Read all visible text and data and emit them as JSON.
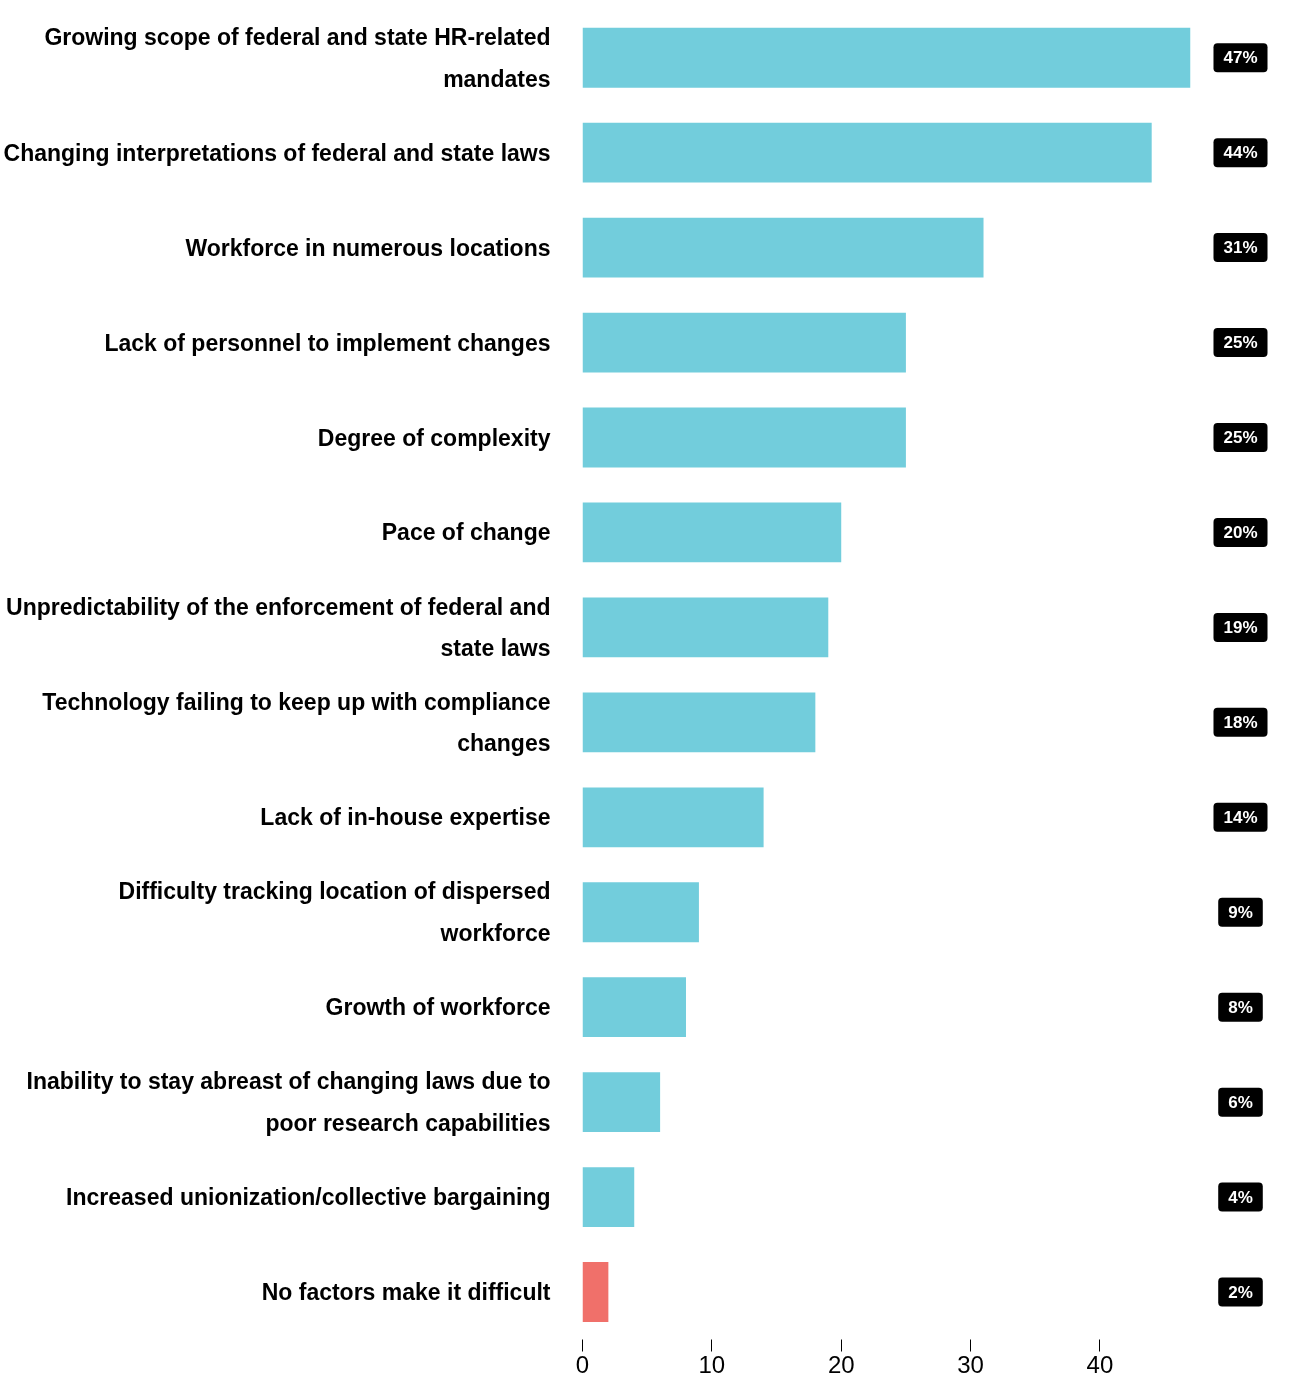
{
  "chart_data": {
    "type": "bar",
    "orientation": "horizontal",
    "categories": [
      "Growing scope of federal and state HR-related mandates",
      "Changing interpretations of federal and state laws",
      "Workforce in numerous locations",
      "Lack of personnel to implement changes",
      "Degree of complexity",
      "Pace of change",
      "Unpredictability of the enforcement of federal and state laws",
      "Technology failing to keep up with compliance changes",
      "Lack of in-house expertise",
      "Difficulty tracking location of dispersed workforce",
      "Growth of workforce",
      "Inability to stay abreast of changing laws due to poor research capabilities",
      "Increased unionization/collective bargaining",
      "No factors make it difficult"
    ],
    "values": [
      47,
      44,
      31,
      25,
      25,
      20,
      19,
      18,
      14,
      9,
      8,
      6,
      4,
      2
    ],
    "colors": [
      "#72cddc",
      "#72cddc",
      "#72cddc",
      "#72cddc",
      "#72cddc",
      "#72cddc",
      "#72cddc",
      "#72cddc",
      "#72cddc",
      "#72cddc",
      "#72cddc",
      "#72cddc",
      "#72cddc",
      "#f0706a"
    ],
    "value_labels": [
      "47%",
      "44%",
      "31%",
      "25%",
      "25%",
      "20%",
      "19%",
      "18%",
      "14%",
      "9%",
      "8%",
      "6%",
      "4%",
      "2%"
    ],
    "xlim": [
      0,
      47
    ],
    "xticks": [
      0,
      10,
      20,
      30,
      40
    ],
    "grid": false
  }
}
